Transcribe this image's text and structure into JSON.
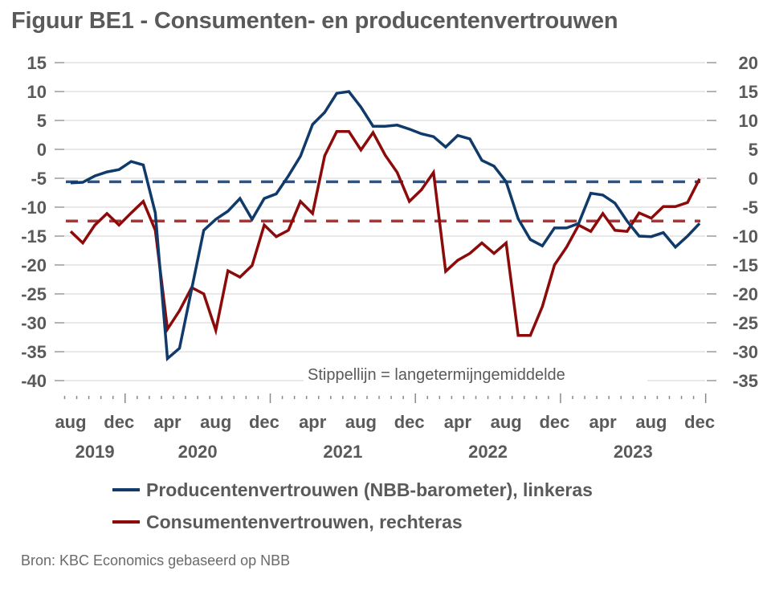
{
  "title": "Figuur BE1 - Consumenten- en producentenvertrouwen",
  "source": "Bron: KBC Economics gebaseerd op NBB",
  "chart_data": {
    "type": "line",
    "title": "Figuur BE1 - Consumenten- en producentenvertrouwen",
    "xlabel": "",
    "ylabel": "",
    "x_start": "2019-08",
    "x_end": "2023-12",
    "x_frequency": "monthly",
    "x_tick_labels": [
      {
        "index": 0,
        "label": "aug"
      },
      {
        "index": 4,
        "label": "dec"
      },
      {
        "index": 8,
        "label": "apr"
      },
      {
        "index": 12,
        "label": "aug"
      },
      {
        "index": 16,
        "label": "dec"
      },
      {
        "index": 20,
        "label": "apr"
      },
      {
        "index": 24,
        "label": "aug"
      },
      {
        "index": 28,
        "label": "dec"
      },
      {
        "index": 32,
        "label": "apr"
      },
      {
        "index": 36,
        "label": "aug"
      },
      {
        "index": 40,
        "label": "dec"
      },
      {
        "index": 44,
        "label": "apr"
      },
      {
        "index": 48,
        "label": "aug"
      },
      {
        "index": 52,
        "label": "dec"
      }
    ],
    "x_year_labels": [
      {
        "label": "2019",
        "from": 0,
        "to": 4
      },
      {
        "label": "2020",
        "from": 5,
        "to": 16
      },
      {
        "label": "2021",
        "from": 17,
        "to": 28
      },
      {
        "label": "2022",
        "from": 29,
        "to": 40
      },
      {
        "label": "2023",
        "from": 41,
        "to": 52
      }
    ],
    "year_boundaries_after_index": [
      4,
      16,
      28,
      40,
      52
    ],
    "left_axis": {
      "ylim": [
        -40,
        15
      ],
      "ticks": [
        15,
        10,
        5,
        0,
        -5,
        -10,
        -15,
        -20,
        -25,
        -30,
        -35,
        -40
      ]
    },
    "right_axis": {
      "ylim": [
        -35,
        20
      ],
      "ticks": [
        20,
        15,
        10,
        5,
        0,
        -5,
        -10,
        -15,
        -20,
        -25,
        -30,
        -35
      ]
    },
    "grid": true,
    "legend_position": "bottom",
    "annotation": "Stippellijn = langetermijngemiddelde",
    "series": [
      {
        "name": "Producentenvertrouwen (NBB-barometer), linkeras",
        "axis": "left",
        "color": "#0f3a6a",
        "values": [
          -5.8,
          -5.7,
          -4.6,
          -3.9,
          -3.5,
          -2.1,
          -2.7,
          -11.0,
          -36.2,
          -34.4,
          -24.2,
          -14.0,
          -12.1,
          -10.7,
          -8.5,
          -12.1,
          -8.5,
          -7.7,
          -4.6,
          -1.2,
          4.3,
          6.4,
          9.7,
          10.0,
          7.3,
          4.0,
          4.0,
          4.2,
          3.5,
          2.7,
          2.2,
          0.4,
          2.4,
          1.8,
          -1.9,
          -2.9,
          -5.6,
          -12.0,
          -15.6,
          -16.7,
          -13.6,
          -13.6,
          -12.8,
          -7.6,
          -7.9,
          -9.3,
          -12.4,
          -15.0,
          -15.1,
          -14.4,
          -16.9,
          -15.0,
          -12.8
        ],
        "long_term_average": -5.6,
        "average_color": "#2a5588"
      },
      {
        "name": "Consumentenvertrouwen, rechteras",
        "axis": "right",
        "color": "#8c0a0a",
        "values": [
          -9.2,
          -11.2,
          -8.1,
          -6.1,
          -8.1,
          -6.0,
          -4.0,
          -9.0,
          -26.1,
          -22.9,
          -18.9,
          -20.0,
          -26.3,
          -16.0,
          -17.1,
          -15.1,
          -8.1,
          -10.1,
          -9.0,
          -4.0,
          -6.1,
          3.9,
          8.1,
          8.1,
          4.9,
          7.9,
          4.0,
          1.0,
          -4.0,
          -2.0,
          1.0,
          -16.1,
          -14.2,
          -13.0,
          -11.2,
          -13.0,
          -11.2,
          -27.2,
          -27.2,
          -22.2,
          -15.0,
          -11.9,
          -8.1,
          -9.2,
          -6.1,
          -9.0,
          -9.2,
          -6.0,
          -6.9,
          -4.9,
          -4.9,
          -4.2,
          -0.1
        ],
        "long_term_average": -7.4,
        "average_color": "#a03a3a"
      }
    ]
  }
}
